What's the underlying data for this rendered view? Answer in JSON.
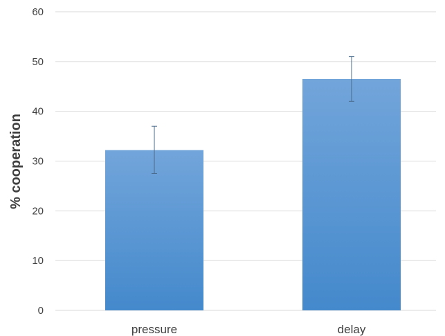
{
  "chart_data": {
    "type": "bar",
    "title": "",
    "xlabel": "",
    "ylabel": "% cooperation",
    "categories": [
      "pressure",
      "delay"
    ],
    "values": [
      32.2,
      46.5
    ],
    "error_bars": [
      {
        "low": 27.5,
        "high": 37.0
      },
      {
        "low": 42.0,
        "high": 51.0
      }
    ],
    "ylim": [
      0,
      60
    ],
    "yticks": [
      "0",
      "10",
      "20",
      "30",
      "40",
      "50",
      "60"
    ],
    "grid": true,
    "legend": "none",
    "colors": {
      "bar_top": "#72a5da",
      "bar_bottom": "#4489cc",
      "error_bar": "#4a6b8c",
      "grid": "#d9d9d9",
      "text": "#404040"
    }
  }
}
